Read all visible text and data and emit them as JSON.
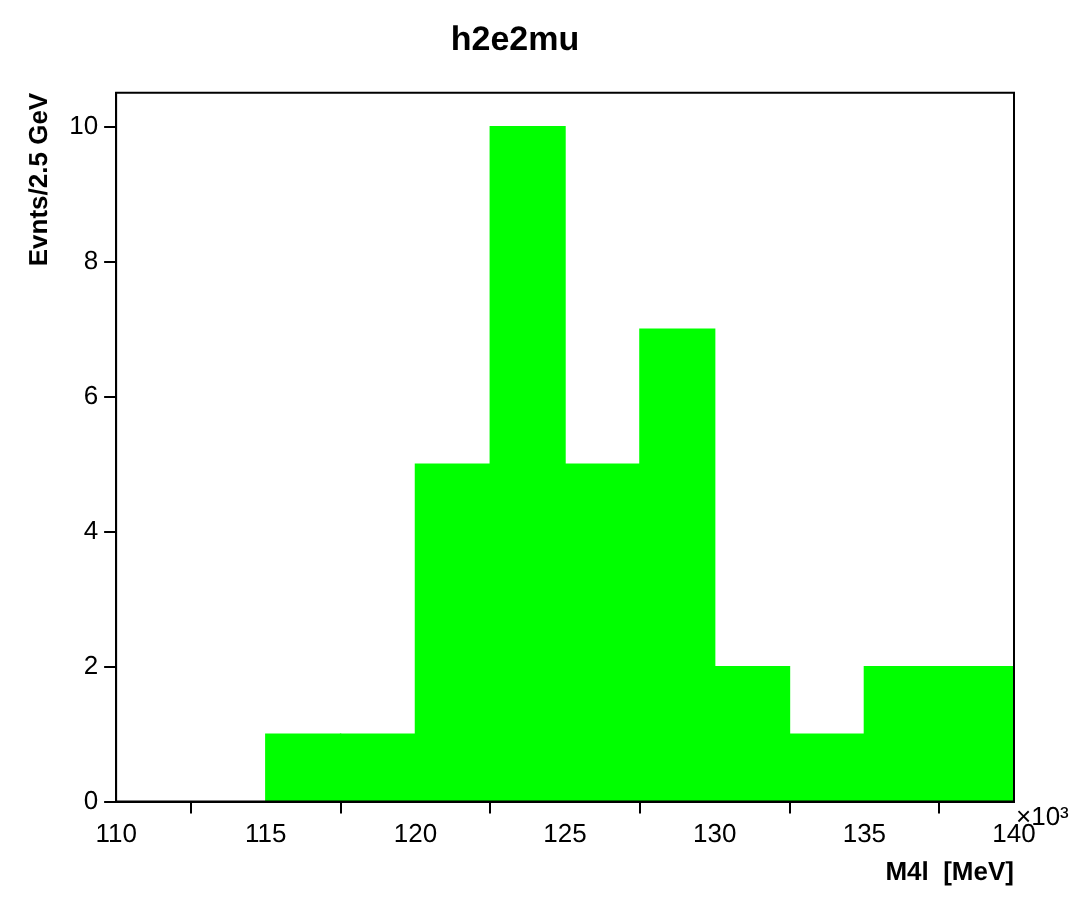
{
  "chart_data": {
    "type": "histogram",
    "title": "h2e2mu",
    "xlabel": "M4l  [MeV]",
    "ylabel": "Evnts/2.5 GeV",
    "bins": [
      110,
      112.5,
      115,
      117.5,
      120,
      122.5,
      125,
      127.5,
      130,
      132.5,
      135,
      137.5,
      140
    ],
    "values": [
      0,
      0,
      1,
      1,
      5,
      10,
      5,
      7,
      2,
      1,
      2,
      2
    ],
    "color": "#00ff00",
    "xlim": [
      110,
      140
    ],
    "xticks": [
      110,
      115,
      120,
      125,
      130,
      135,
      140
    ],
    "ylim": [
      0,
      10.5
    ],
    "yticks": [
      0,
      2,
      4,
      6,
      8,
      10
    ],
    "annotations": [
      "×10³"
    ],
    "grid": false,
    "legend": false
  }
}
